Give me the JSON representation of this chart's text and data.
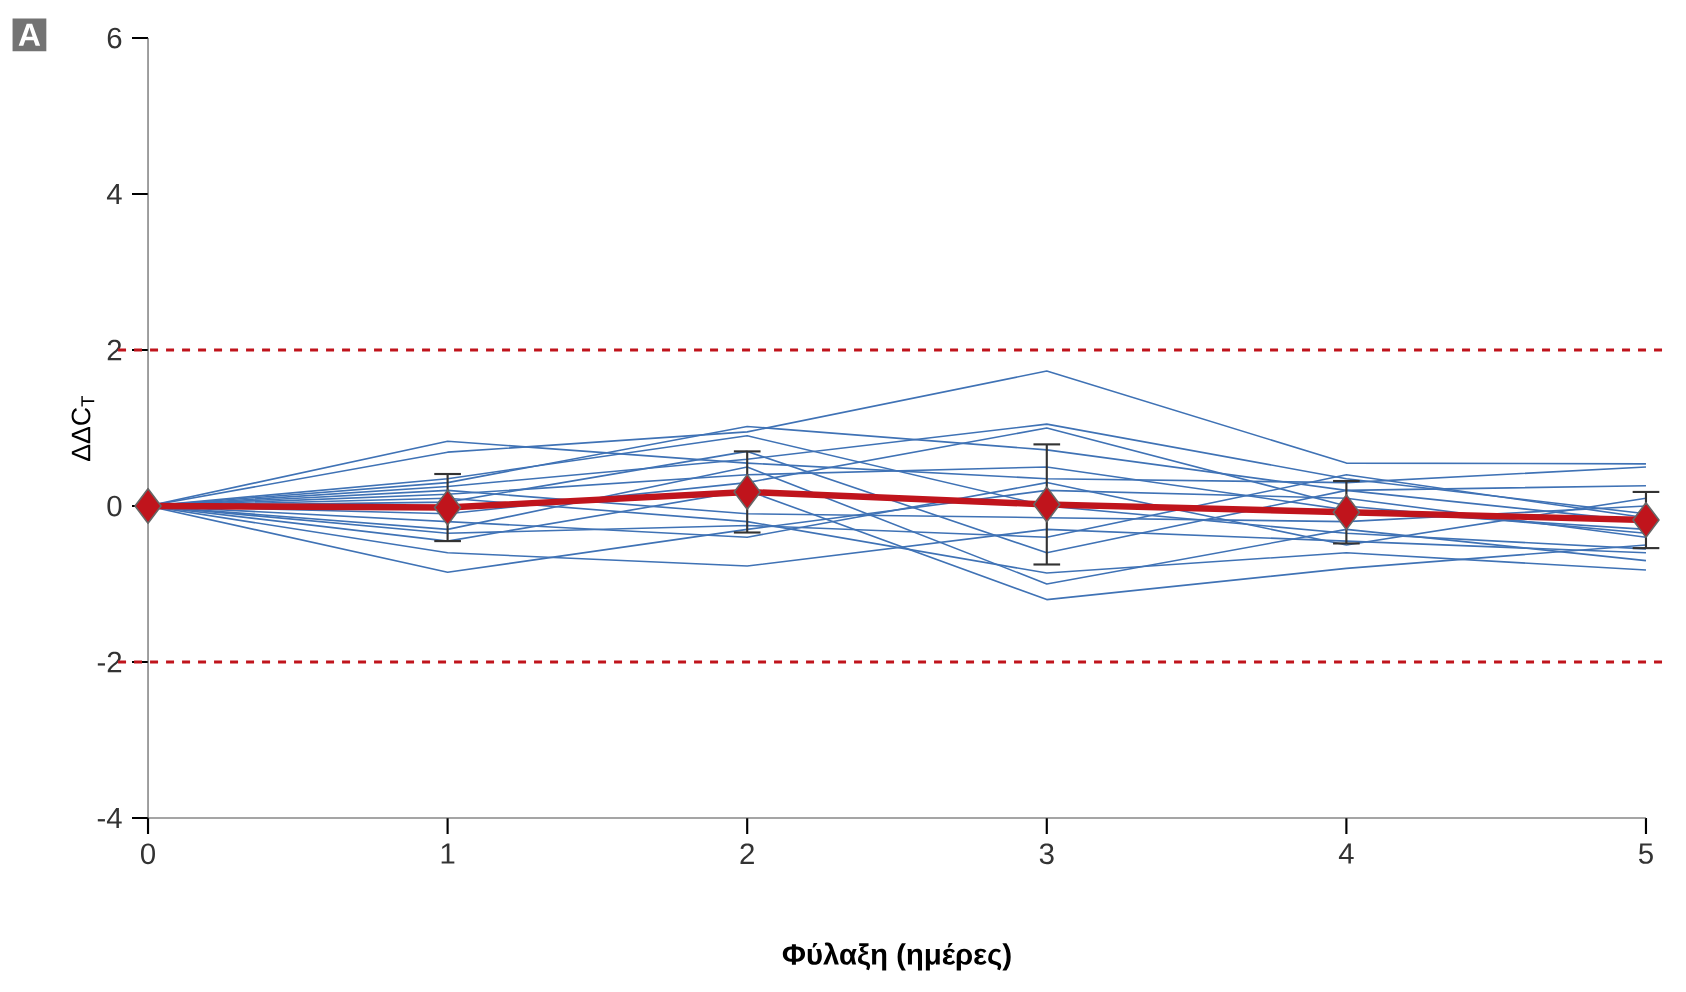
{
  "chart_data": {
    "type": "line",
    "xlabel": "**Φύλαξη (ημέρες)**",
    "ylabel": "ΔΔC$_{T}$",
    "annotations": [
      "A"
    ],
    "x": [
      0,
      1,
      2,
      3,
      4,
      5
    ],
    "xlim": [
      0,
      5
    ],
    "ylim": [
      -4,
      6
    ],
    "xticks": [
      0,
      1,
      2,
      3,
      4,
      5
    ],
    "yticks": [
      -4,
      -2,
      0,
      2,
      4,
      6
    ],
    "grid": false,
    "line_style": "solid",
    "ref_lines": [
      {
        "axis": "y",
        "value": 2,
        "color": "#c0141c",
        "line_style": "dashed"
      },
      {
        "axis": "y",
        "value": -2,
        "color": "#c0141c",
        "line_style": "dashed"
      }
    ],
    "series": [
      {
        "color": "#3f72b5",
        "marker": "none",
        "values": [
          0,
          0.83,
          0.55,
          0.35,
          0.3,
          0.5
        ]
      },
      {
        "color": "#3f72b5",
        "marker": "none",
        "values": [
          0,
          0.69,
          0.95,
          1.73,
          0.55,
          0.54
        ]
      },
      {
        "color": "#3f72b5",
        "marker": "none",
        "values": [
          0,
          0.3,
          1.02,
          0.72,
          0.2,
          0.26
        ]
      },
      {
        "color": "#3f72b5",
        "marker": "none",
        "values": [
          0,
          0.25,
          0.6,
          1.05,
          0.35,
          -0.1
        ]
      },
      {
        "color": "#3f72b5",
        "marker": "none",
        "values": [
          0,
          0.15,
          0.4,
          0.5,
          -0.05,
          -0.3
        ]
      },
      {
        "color": "#3f72b5",
        "marker": "none",
        "values": [
          0,
          0.1,
          -0.2,
          -0.86,
          -0.6,
          -0.82
        ]
      },
      {
        "color": "#3f72b5",
        "marker": "none",
        "values": [
          0,
          -0.85,
          -0.3,
          0.2,
          0.1,
          -0.4
        ]
      },
      {
        "color": "#3f72b5",
        "marker": "none",
        "values": [
          0,
          -0.6,
          -0.77,
          -0.3,
          -0.45,
          -0.6
        ]
      },
      {
        "color": "#3f72b5",
        "marker": "none",
        "values": [
          0,
          -0.45,
          0.2,
          -1.2,
          -0.8,
          -0.5
        ]
      },
      {
        "color": "#3f72b5",
        "marker": "none",
        "values": [
          0,
          -0.3,
          0.5,
          -1.0,
          -0.3,
          -0.7
        ]
      },
      {
        "color": "#3f72b5",
        "marker": "none",
        "values": [
          0,
          -0.2,
          -0.4,
          0.3,
          -0.5,
          0.1
        ]
      },
      {
        "color": "#3f72b5",
        "marker": "none",
        "values": [
          0,
          0.05,
          0.7,
          -0.6,
          0.2,
          -0.2
        ]
      },
      {
        "color": "#3f72b5",
        "marker": "none",
        "values": [
          0,
          -0.1,
          0.3,
          1.0,
          0.0,
          -0.35
        ]
      },
      {
        "color": "#3f72b5",
        "marker": "none",
        "values": [
          0,
          0.2,
          -0.1,
          -0.15,
          -0.2,
          0.0
        ]
      },
      {
        "color": "#3f72b5",
        "marker": "none",
        "values": [
          0,
          -0.35,
          -0.25,
          -0.4,
          0.4,
          -0.15
        ]
      },
      {
        "color": "#3f72b5",
        "marker": "none",
        "values": [
          0,
          0.35,
          0.9,
          0.0,
          -0.35,
          -0.55
        ]
      },
      {
        "color": "#c0141c",
        "marker": "diamond",
        "values": [
          0,
          -0.02,
          0.18,
          0.02,
          -0.08,
          -0.18
        ],
        "errors": [
          null,
          0.43,
          0.52,
          0.77,
          0.4,
          0.36
        ]
      }
    ]
  }
}
